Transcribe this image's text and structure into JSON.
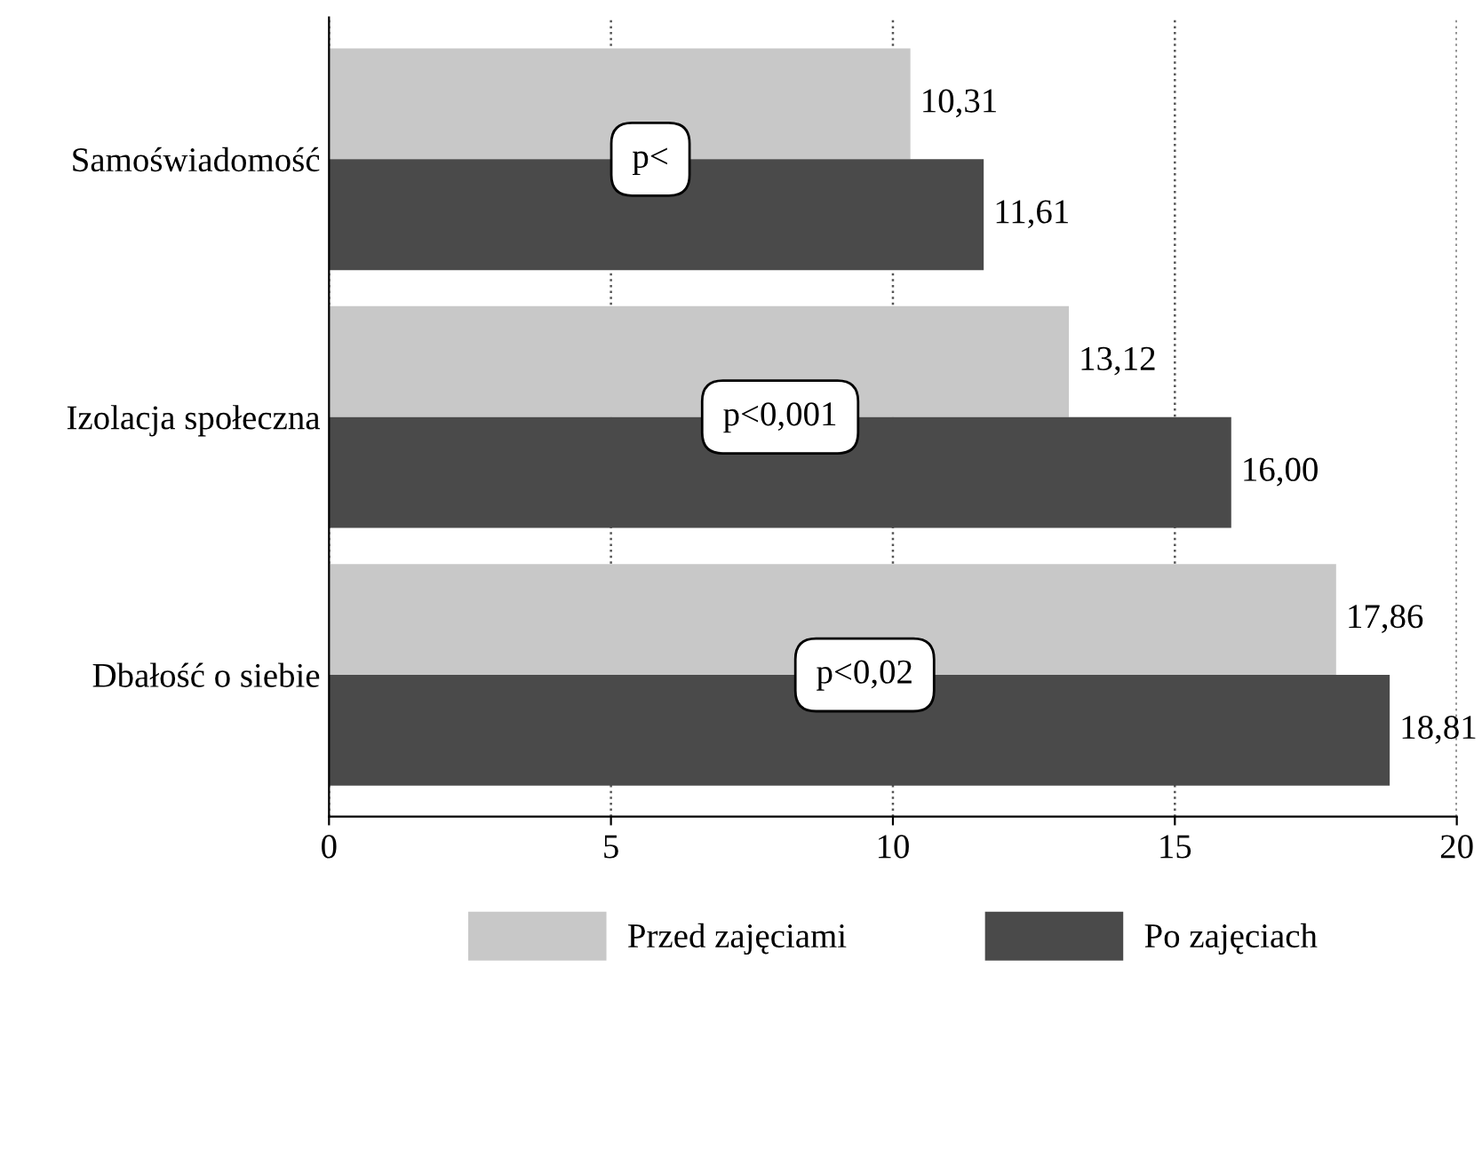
{
  "chart_data": {
    "type": "bar",
    "orientation": "horizontal",
    "categories": [
      "Samoświadomość",
      "Izolacja społeczna",
      "Dbałość o siebie"
    ],
    "series": [
      {
        "name": "Przed zajęciami",
        "color": "#c8c8c8",
        "values": [
          10.31,
          13.12,
          17.86
        ],
        "value_labels": [
          "10,31",
          "13,12",
          "17,86"
        ]
      },
      {
        "name": "Po zajęciach",
        "color": "#4a4a4a",
        "values": [
          11.61,
          16.0,
          18.81
        ],
        "value_labels": [
          "11,61",
          "16,00",
          "18,81"
        ]
      }
    ],
    "xlim": [
      0,
      20
    ],
    "xticks": [
      0,
      5,
      10,
      15,
      20
    ],
    "grid": "x",
    "legend": "bottom",
    "annotations": [
      {
        "text": "p<",
        "x": 5.7,
        "y": "Samoświadomość"
      },
      {
        "text": "p<0,001",
        "x": 8.0,
        "y": "Izolacja społeczna"
      },
      {
        "text": "p<0,02",
        "x": 9.5,
        "y": "Dbałość o siebie"
      }
    ]
  }
}
